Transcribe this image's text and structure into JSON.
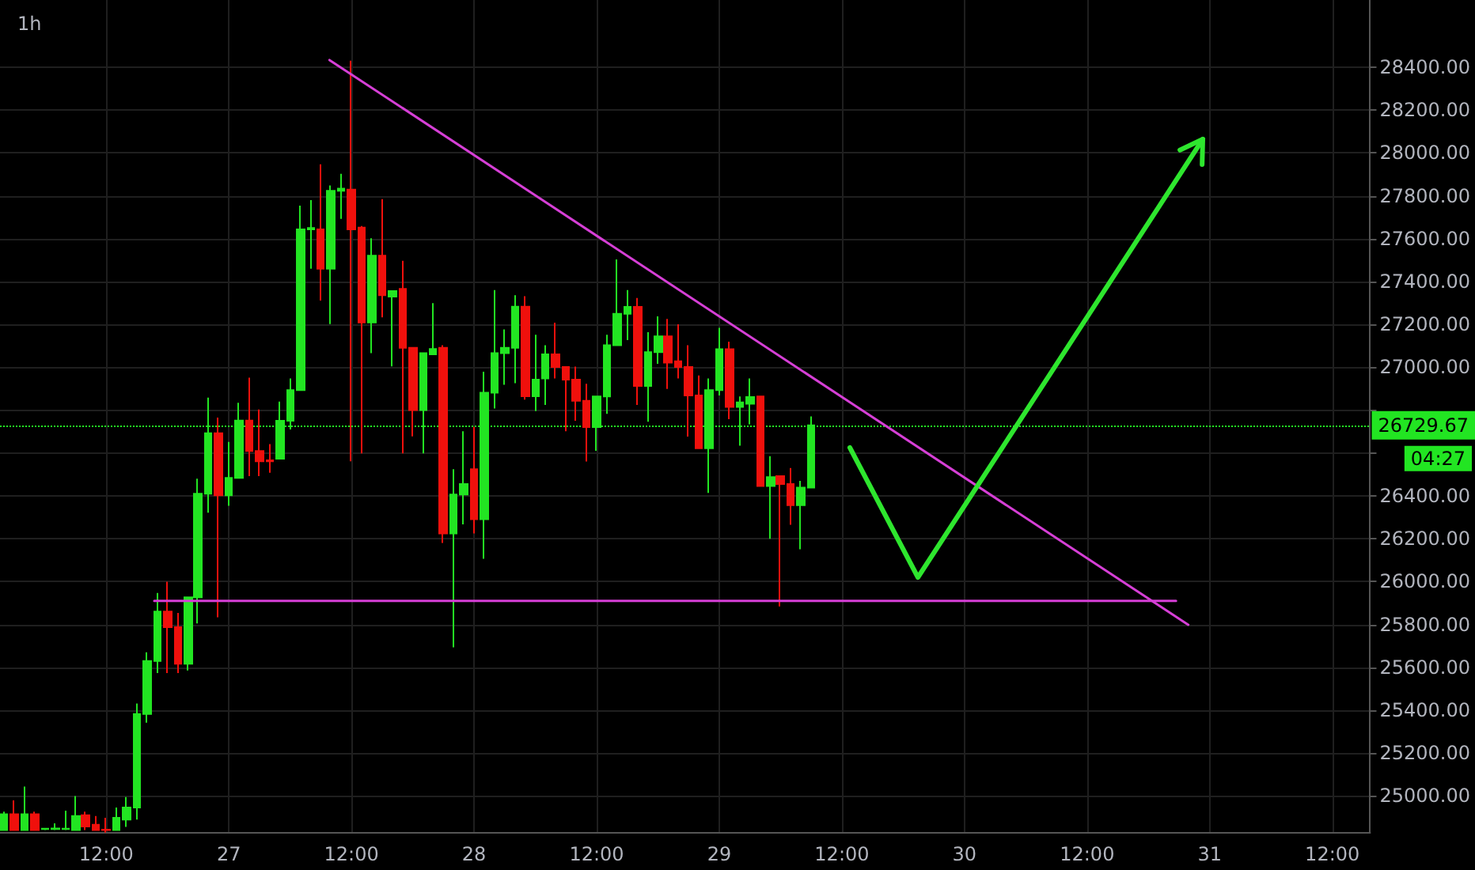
{
  "chart_data": {
    "type": "candlestick",
    "title": "1h",
    "x": [
      "--03-26T02:00",
      "--03-26T03:00",
      "--03-26T04:00",
      "--03-26T05:00",
      "--03-26T06:00",
      "--03-26T07:00",
      "--03-26T08:00",
      "--03-26T09:00",
      "--03-26T10:00",
      "--03-26T11:00",
      "--03-26T12:00",
      "--03-26T13:00",
      "--03-26T14:00",
      "--03-26T15:00",
      "--03-26T16:00",
      "--03-26T17:00",
      "--03-26T18:00",
      "--03-26T19:00",
      "--03-26T20:00",
      "--03-26T21:00",
      "--03-26T22:00",
      "--03-26T23:00",
      "--03-27T00:00",
      "--03-27T01:00",
      "--03-27T02:00",
      "--03-27T03:00",
      "--03-27T04:00",
      "--03-27T05:00",
      "--03-27T06:00",
      "--03-27T07:00",
      "--03-27T08:00",
      "--03-27T09:00",
      "--03-27T10:00",
      "--03-27T11:00",
      "--03-27T12:00",
      "--03-27T13:00",
      "--03-27T14:00",
      "--03-27T15:00",
      "--03-27T16:00",
      "--03-27T17:00",
      "--03-27T18:00",
      "--03-27T19:00",
      "--03-27T20:00",
      "--03-27T21:00",
      "--03-27T22:00",
      "--03-27T23:00",
      "--03-28T00:00",
      "--03-28T01:00",
      "--03-28T02:00",
      "--03-28T03:00",
      "--03-28T04:00",
      "--03-28T05:00",
      "--03-28T06:00",
      "--03-28T07:00",
      "--03-28T08:00",
      "--03-28T09:00",
      "--03-28T10:00",
      "--03-28T11:00",
      "--03-28T12:00",
      "--03-28T13:00",
      "--03-28T14:00",
      "--03-28T15:00",
      "--03-28T16:00",
      "--03-28T17:00",
      "--03-28T18:00",
      "--03-28T19:00",
      "--03-28T20:00",
      "--03-28T21:00",
      "--03-28T22:00",
      "--03-28T23:00",
      "--03-29T00:00",
      "--03-29T01:00",
      "--03-29T02:00",
      "--03-29T03:00",
      "--03-29T04:00",
      "--03-29T05:00",
      "--03-29T06:00",
      "--03-29T07:00",
      "--03-29T08:00",
      "--03-29T09:00"
    ],
    "ohlc": [
      [
        24841,
        24927,
        24841,
        24915
      ],
      [
        24915,
        24980,
        24841,
        24841
      ],
      [
        24841,
        25044,
        24841,
        24915
      ],
      [
        24915,
        24927,
        24841,
        24841
      ],
      [
        24846,
        24850,
        24841,
        24848
      ],
      [
        24846,
        24873,
        24841,
        24849
      ],
      [
        24846,
        24932,
        24841,
        24848
      ],
      [
        24841,
        25000,
        24841,
        24907
      ],
      [
        24910,
        24927,
        24841,
        24858
      ],
      [
        24866,
        24907,
        24841,
        24841
      ],
      [
        24843,
        24898,
        24829,
        24841
      ],
      [
        24841,
        24946,
        24841,
        24898
      ],
      [
        24890,
        24995,
        24856,
        24946
      ],
      [
        24946,
        25432,
        24890,
        25383
      ],
      [
        25383,
        25671,
        25342,
        25630
      ],
      [
        25630,
        25947,
        25574,
        25861
      ],
      [
        25861,
        26000,
        25574,
        25788
      ],
      [
        25788,
        25854,
        25574,
        25617
      ],
      [
        25617,
        25927,
        25586,
        25927
      ],
      [
        25927,
        26481,
        25805,
        26410
      ],
      [
        26410,
        26859,
        26322,
        26693
      ],
      [
        26693,
        26766,
        25834,
        26403
      ],
      [
        26403,
        26652,
        26354,
        26484
      ],
      [
        26484,
        26835,
        26484,
        26752
      ],
      [
        26752,
        26952,
        26493,
        26610
      ],
      [
        26610,
        26803,
        26493,
        26562
      ],
      [
        26566,
        26642,
        26508,
        26562
      ],
      [
        26574,
        26840,
        26574,
        26751
      ],
      [
        26751,
        26948,
        26710,
        26894
      ],
      [
        26894,
        27755,
        26894,
        27644
      ],
      [
        27644,
        27780,
        27460,
        27650
      ],
      [
        27644,
        27947,
        27312,
        27460
      ],
      [
        27460,
        27849,
        27202,
        27824
      ],
      [
        27824,
        27903,
        27693,
        27834
      ],
      [
        27829,
        28431,
        26562,
        27644
      ],
      [
        27652,
        27660,
        26599,
        27209
      ],
      [
        27209,
        27602,
        27066,
        27521
      ],
      [
        27521,
        27785,
        27233,
        27337
      ],
      [
        27330,
        27356,
        27005,
        27356
      ],
      [
        27366,
        27497,
        26599,
        27091
      ],
      [
        27091,
        27091,
        26678,
        26801
      ],
      [
        26801,
        27066,
        26599,
        27066
      ],
      [
        27061,
        27300,
        27061,
        27086
      ],
      [
        27091,
        27103,
        26181,
        26225
      ],
      [
        26225,
        26525,
        25694,
        26407
      ],
      [
        26407,
        26702,
        26267,
        26456
      ],
      [
        26525,
        26722,
        26225,
        26291
      ],
      [
        26291,
        26980,
        26107,
        26882
      ],
      [
        26882,
        27361,
        26808,
        27066
      ],
      [
        27066,
        27177,
        26919,
        27091
      ],
      [
        27091,
        27337,
        26926,
        27283
      ],
      [
        27283,
        27332,
        26850,
        26865
      ],
      [
        26865,
        27152,
        26796,
        26943
      ],
      [
        26948,
        27103,
        26825,
        27061
      ],
      [
        27061,
        27208,
        26948,
        27002
      ],
      [
        27002,
        27004,
        26702,
        26943
      ],
      [
        26943,
        27004,
        26751,
        26844
      ],
      [
        26844,
        26923,
        26561,
        26721
      ],
      [
        26721,
        26864,
        26611,
        26864
      ],
      [
        26864,
        27152,
        26783,
        27103
      ],
      [
        27103,
        27504,
        27103,
        27250
      ],
      [
        27250,
        27361,
        27127,
        27282
      ],
      [
        27282,
        27324,
        26825,
        26913
      ],
      [
        26913,
        27164,
        26746,
        27071
      ],
      [
        27071,
        27238,
        27017,
        27145
      ],
      [
        27145,
        27226,
        26899,
        27022
      ],
      [
        27029,
        27201,
        26948,
        27002
      ],
      [
        27002,
        27103,
        26677,
        26869
      ],
      [
        26869,
        26962,
        26623,
        26623
      ],
      [
        26623,
        26948,
        26414,
        26894
      ],
      [
        26894,
        27184,
        26869,
        27085
      ],
      [
        27085,
        27120,
        26758,
        26815
      ],
      [
        26815,
        26864,
        26635,
        26837
      ],
      [
        26830,
        26948,
        26734,
        26862
      ],
      [
        26864,
        26864,
        26446,
        26446
      ],
      [
        26446,
        26586,
        26200,
        26488
      ],
      [
        26493,
        26493,
        25885,
        26456
      ],
      [
        26456,
        26530,
        26266,
        26357
      ],
      [
        26357,
        26470,
        26151,
        26439
      ],
      [
        26439,
        26771,
        26439,
        26730
      ]
    ],
    "colors": [
      "#22e522",
      "#f0100c",
      "#22e522",
      "#f0100c",
      "#22e522",
      "#22e522",
      "#22e522",
      "#22e522",
      "#f0100c",
      "#f0100c",
      "#f0100c",
      "#22e522",
      "#22e522",
      "#22e522",
      "#22e522",
      "#22e522",
      "#f0100c",
      "#f0100c",
      "#22e522",
      "#22e522",
      "#22e522",
      "#f0100c",
      "#22e522",
      "#22e522",
      "#f0100c",
      "#f0100c",
      "#f0100c",
      "#22e522",
      "#22e522",
      "#22e522",
      "#22e522",
      "#f0100c",
      "#22e522",
      "#22e522",
      "#f0100c",
      "#f0100c",
      "#22e522",
      "#f0100c",
      "#22e522",
      "#f0100c",
      "#f0100c",
      "#22e522",
      "#22e522",
      "#f0100c",
      "#22e522",
      "#22e522",
      "#f0100c",
      "#22e522",
      "#22e522",
      "#22e522",
      "#22e522",
      "#f0100c",
      "#22e522",
      "#22e522",
      "#f0100c",
      "#f0100c",
      "#f0100c",
      "#f0100c",
      "#22e522",
      "#22e522",
      "#22e522",
      "#22e522",
      "#f0100c",
      "#22e522",
      "#22e522",
      "#f0100c",
      "#f0100c",
      "#f0100c",
      "#f0100c",
      "#22e522",
      "#22e522",
      "#f0100c",
      "#22e522",
      "#22e522",
      "#f0100c",
      "#22e522",
      "#f0100c",
      "#f0100c",
      "#22e522",
      "#22e522"
    ],
    "series": [
      {
        "type": "line",
        "color": "#d63fd6",
        "x": [
          "--03-27T09:51",
          "--03-30T21:54"
        ],
        "values": [
          28434,
          25799
        ]
      },
      {
        "type": "line",
        "color": "#d63fd6",
        "x": [
          "--03-26T16:42",
          "--03-30T20:42"
        ],
        "values": [
          25910,
          25910
        ]
      }
    ],
    "ref_lines": [
      {
        "axis": "y",
        "value": 26729.67,
        "label": "26729.67",
        "color": "#22e522",
        "line_style": "dotted"
      }
    ],
    "annotations": [
      "04:27"
    ],
    "xlim": [
      "--03-26T01:36",
      "--03-31T15:42"
    ],
    "xticks": [
      {
        "value": "--03-26T12:00",
        "label": "12:00"
      },
      {
        "value": "--03-27T00:00",
        "label": "27"
      },
      {
        "value": "--03-27T12:00",
        "label": "12:00"
      },
      {
        "value": "--03-28T00:00",
        "label": "28"
      },
      {
        "value": "--03-28T12:00",
        "label": "12:00"
      },
      {
        "value": "--03-29T00:00",
        "label": "29"
      },
      {
        "value": "--03-29T12:00",
        "label": "12:00"
      },
      {
        "value": "--03-30T00:00",
        "label": "30"
      },
      {
        "value": "--03-30T12:00",
        "label": "12:00"
      },
      {
        "value": "--03-31T00:00",
        "label": "31"
      },
      {
        "value": "--03-31T12:00",
        "label": "12:00"
      }
    ],
    "ylim": [
      24832,
      28714
    ],
    "yticks": [
      {
        "value": 25000,
        "label": "25000.00"
      },
      {
        "value": 25200,
        "label": "25200.00"
      },
      {
        "value": 25400,
        "label": "25400.00"
      },
      {
        "value": 25600,
        "label": "25600.00"
      },
      {
        "value": 25800,
        "label": "25800.00"
      },
      {
        "value": 26000,
        "label": "26000.00"
      },
      {
        "value": 26200,
        "label": "26200.00"
      },
      {
        "value": 26400,
        "label": "26400.00"
      },
      {
        "value": 26600,
        "label": null
      },
      {
        "value": 26800,
        "label": null
      },
      {
        "value": 27000,
        "label": "27000.00"
      },
      {
        "value": 27200,
        "label": "27200.00"
      },
      {
        "value": 27400,
        "label": "27400.00"
      },
      {
        "value": 27600,
        "label": "27600.00"
      },
      {
        "value": 27800,
        "label": "27800.00"
      },
      {
        "value": 28000,
        "label": "28000.00"
      },
      {
        "value": 28200,
        "label": "28200.00"
      },
      {
        "value": 28400,
        "label": "28400.00"
      }
    ],
    "grid": true
  }
}
